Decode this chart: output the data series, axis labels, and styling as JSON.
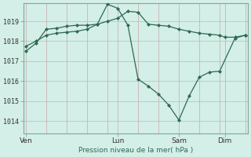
{
  "bg_color": "#d4eee8",
  "plot_bg_color": "#d4eee8",
  "line_color": "#2d6a4f",
  "grid_color_v": "#c8a8a8",
  "grid_color_h": "#a0c8b8",
  "ylabel_text": "Pression niveau de la mer( hPa )",
  "xtick_labels": [
    "Ven",
    "Lun",
    "Sam",
    "Dim"
  ],
  "xtick_positions": [
    1,
    37,
    61,
    79
  ],
  "ylim": [
    1013.4,
    1019.9
  ],
  "yticks": [
    1014,
    1015,
    1016,
    1017,
    1018,
    1019
  ],
  "xlim": [
    0,
    88
  ],
  "vgrid_positions": [
    1,
    9,
    17,
    25,
    33,
    37,
    45,
    53,
    61,
    69,
    77,
    79,
    87
  ],
  "line1_x": [
    1,
    5,
    9,
    13,
    17,
    21,
    25,
    29,
    33,
    37,
    41,
    45,
    49,
    53,
    57,
    61,
    65,
    69,
    73,
    77,
    79,
    83,
    87
  ],
  "line1_y": [
    1017.5,
    1017.9,
    1018.6,
    1018.65,
    1018.75,
    1018.8,
    1018.8,
    1018.85,
    1019.0,
    1019.15,
    1019.5,
    1019.45,
    1018.85,
    1018.8,
    1018.75,
    1018.6,
    1018.5,
    1018.4,
    1018.35,
    1018.3,
    1018.2,
    1018.2,
    1018.3
  ],
  "line2_x": [
    1,
    5,
    9,
    13,
    17,
    21,
    25,
    29,
    33,
    37,
    41,
    45,
    49,
    53,
    57,
    61,
    65,
    69,
    73,
    77,
    83,
    87
  ],
  "line2_y": [
    1017.75,
    1018.0,
    1018.3,
    1018.4,
    1018.45,
    1018.5,
    1018.6,
    1018.85,
    1019.85,
    1019.65,
    1018.8,
    1016.1,
    1015.75,
    1015.35,
    1014.8,
    1014.05,
    1015.25,
    1016.2,
    1016.45,
    1016.5,
    1018.15,
    1018.3
  ]
}
